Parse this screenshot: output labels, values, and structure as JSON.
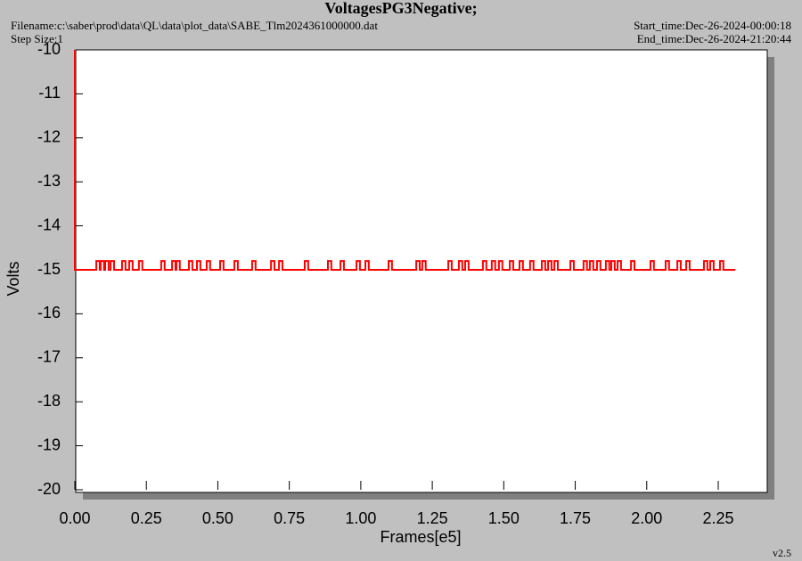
{
  "chart_data": {
    "type": "line",
    "title": "VoltagesPG3Negative;",
    "filename": "Filename:c:\\saber\\prod\\data\\QL\\data\\plot_data\\SABE_Tlm2024361000000.dat",
    "step_size": "Step Size:1",
    "start_time": "Start_time:Dec-26-2024-00:00:18",
    "end_time": "End_time:Dec-26-2024-21:20:44",
    "version": "v2.5",
    "x_label": "Frames[e5]",
    "y_label": "Volts",
    "xlim": [
      0,
      2.42
    ],
    "ylim": [
      -20,
      -10
    ],
    "xticks": [
      {
        "value": 0,
        "label": "0.00"
      },
      0.25,
      {
        "value": 0.5,
        "label": "0.50"
      },
      0.75,
      {
        "value": 1,
        "label": "1.00"
      },
      1.25,
      {
        "value": 1.5,
        "label": "1.50"
      },
      1.75,
      {
        "value": 2,
        "label": "2.00"
      },
      2.25
    ],
    "yticks": [
      -10,
      -11,
      -12,
      -13,
      -14,
      -15,
      -16,
      -17,
      -18,
      -19,
      -20
    ],
    "series": [
      {
        "color": "#ff0000",
        "x": [
          0,
          0,
          0.075,
          0.075,
          0.087,
          0.087,
          0.09,
          0.09,
          0.102,
          0.102,
          0.106,
          0.106,
          0.118,
          0.118,
          0.125,
          0.125,
          0.137,
          0.137,
          0.165,
          0.165,
          0.177,
          0.177,
          0.19,
          0.19,
          0.202,
          0.202,
          0.224,
          0.224,
          0.236,
          0.236,
          0.302,
          0.302,
          0.314,
          0.314,
          0.34,
          0.34,
          0.352,
          0.352,
          0.355,
          0.355,
          0.367,
          0.367,
          0.399,
          0.399,
          0.411,
          0.411,
          0.427,
          0.427,
          0.439,
          0.439,
          0.461,
          0.461,
          0.473,
          0.473,
          0.508,
          0.508,
          0.52,
          0.52,
          0.558,
          0.558,
          0.57,
          0.57,
          0.62,
          0.62,
          0.632,
          0.632,
          0.686,
          0.686,
          0.698,
          0.698,
          0.714,
          0.714,
          0.726,
          0.726,
          0.804,
          0.804,
          0.816,
          0.816,
          0.885,
          0.885,
          0.897,
          0.897,
          0.929,
          0.929,
          0.941,
          0.941,
          0.985,
          0.985,
          0.997,
          0.997,
          1.016,
          1.016,
          1.028,
          1.028,
          1.097,
          1.097,
          1.109,
          1.109,
          1.194,
          1.194,
          1.206,
          1.206,
          1.215,
          1.215,
          1.227,
          1.227,
          1.306,
          1.306,
          1.318,
          1.318,
          1.343,
          1.343,
          1.355,
          1.355,
          1.365,
          1.365,
          1.377,
          1.377,
          1.427,
          1.427,
          1.439,
          1.439,
          1.458,
          1.458,
          1.47,
          1.47,
          1.483,
          1.483,
          1.495,
          1.495,
          1.521,
          1.521,
          1.533,
          1.533,
          1.555,
          1.555,
          1.567,
          1.567,
          1.592,
          1.592,
          1.604,
          1.604,
          1.633,
          1.633,
          1.645,
          1.645,
          1.655,
          1.655,
          1.667,
          1.667,
          1.677,
          1.677,
          1.689,
          1.689,
          1.733,
          1.733,
          1.745,
          1.745,
          1.779,
          1.779,
          1.791,
          1.791,
          1.801,
          1.801,
          1.813,
          1.813,
          1.826,
          1.826,
          1.838,
          1.838,
          1.857,
          1.857,
          1.869,
          1.869,
          1.876,
          1.876,
          1.888,
          1.888,
          1.898,
          1.898,
          1.91,
          1.91,
          1.945,
          1.945,
          1.957,
          1.957,
          2.013,
          2.013,
          2.025,
          2.025,
          2.066,
          2.066,
          2.078,
          2.078,
          2.107,
          2.107,
          2.119,
          2.119,
          2.138,
          2.138,
          2.15,
          2.15,
          2.2,
          2.2,
          2.212,
          2.212,
          2.222,
          2.222,
          2.234,
          2.234,
          2.256,
          2.256,
          2.268,
          2.268,
          2.31
        ],
        "values": [
          -10,
          -15,
          -15,
          -14.8,
          -14.8,
          -15,
          -15,
          -14.8,
          -14.8,
          -15,
          -15,
          -14.8,
          -14.8,
          -15,
          -15,
          -14.8,
          -14.8,
          -15,
          -15,
          -14.8,
          -14.8,
          -15,
          -15,
          -14.8,
          -14.8,
          -15,
          -15,
          -14.8,
          -14.8,
          -15,
          -15,
          -14.8,
          -14.8,
          -15,
          -15,
          -14.8,
          -14.8,
          -15,
          -15,
          -14.8,
          -14.8,
          -15,
          -15,
          -14.8,
          -14.8,
          -15,
          -15,
          -14.8,
          -14.8,
          -15,
          -15,
          -14.8,
          -14.8,
          -15,
          -15,
          -14.8,
          -14.8,
          -15,
          -15,
          -14.8,
          -14.8,
          -15,
          -15,
          -14.8,
          -14.8,
          -15,
          -15,
          -14.8,
          -14.8,
          -15,
          -15,
          -14.8,
          -14.8,
          -15,
          -15,
          -14.8,
          -14.8,
          -15,
          -15,
          -14.8,
          -14.8,
          -15,
          -15,
          -14.8,
          -14.8,
          -15,
          -15,
          -14.8,
          -14.8,
          -15,
          -15,
          -14.8,
          -14.8,
          -15,
          -15,
          -14.8,
          -14.8,
          -15,
          -15,
          -14.8,
          -14.8,
          -15,
          -15,
          -14.8,
          -14.8,
          -15,
          -15,
          -14.8,
          -14.8,
          -15,
          -15,
          -14.8,
          -14.8,
          -15,
          -15,
          -14.8,
          -14.8,
          -15,
          -15,
          -14.8,
          -14.8,
          -15,
          -15,
          -14.8,
          -14.8,
          -15,
          -15,
          -14.8,
          -14.8,
          -15,
          -15,
          -14.8,
          -14.8,
          -15,
          -15,
          -14.8,
          -14.8,
          -15,
          -15,
          -14.8,
          -14.8,
          -15,
          -15,
          -14.8,
          -14.8,
          -15,
          -15,
          -14.8,
          -14.8,
          -15,
          -15,
          -14.8,
          -14.8,
          -15,
          -15,
          -14.8,
          -14.8,
          -15,
          -15,
          -14.8,
          -14.8,
          -15,
          -15,
          -14.8,
          -14.8,
          -15,
          -15,
          -14.8,
          -14.8,
          -15,
          -15,
          -14.8,
          -14.8,
          -15,
          -15,
          -14.8,
          -14.8,
          -15,
          -15,
          -14.8,
          -14.8,
          -15,
          -15,
          -14.8,
          -14.8,
          -15,
          -15,
          -14.8,
          -14.8,
          -15,
          -15,
          -14.8,
          -14.8,
          -15,
          -15,
          -14.8,
          -14.8,
          -15,
          -15,
          -14.8,
          -14.8,
          -15,
          -15,
          -14.8,
          -14.8,
          -15,
          -15,
          -14.8,
          -14.8,
          -15,
          -15,
          -14.8,
          -14.8,
          -15,
          -15
        ]
      }
    ]
  }
}
